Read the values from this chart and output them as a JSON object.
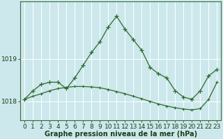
{
  "hours": [
    0,
    1,
    2,
    3,
    4,
    5,
    6,
    7,
    8,
    9,
    10,
    11,
    12,
    13,
    14,
    15,
    16,
    17,
    18,
    19,
    20,
    21,
    22,
    23
  ],
  "pressure_line1": [
    1018.05,
    1018.25,
    1018.4,
    1018.45,
    1018.45,
    1018.3,
    1018.55,
    1018.85,
    1019.15,
    1019.4,
    1019.75,
    1020.0,
    1019.7,
    1019.45,
    1019.2,
    1018.8,
    1018.65,
    1018.55,
    1018.25,
    1018.1,
    1018.05,
    1018.25,
    1018.6,
    1018.75
  ],
  "pressure_line2": [
    1018.05,
    1018.12,
    1018.18,
    1018.25,
    1018.3,
    1018.33,
    1018.35,
    1018.35,
    1018.34,
    1018.32,
    1018.28,
    1018.23,
    1018.18,
    1018.12,
    1018.06,
    1018.0,
    1017.94,
    1017.89,
    1017.85,
    1017.82,
    1017.8,
    1017.83,
    1018.05,
    1018.45
  ],
  "line_color": "#2d6a2d",
  "bg_color": "#cce8ec",
  "grid_color": "#ffffff",
  "axis_label_color": "#1a3d1a",
  "xlabel": "Graphe pression niveau de la mer (hPa)",
  "ylim": [
    1017.55,
    1020.35
  ],
  "yticks": [
    1018,
    1019
  ],
  "xlim": [
    -0.5,
    23.5
  ],
  "label_fontsize": 7,
  "tick_fontsize": 6.5
}
